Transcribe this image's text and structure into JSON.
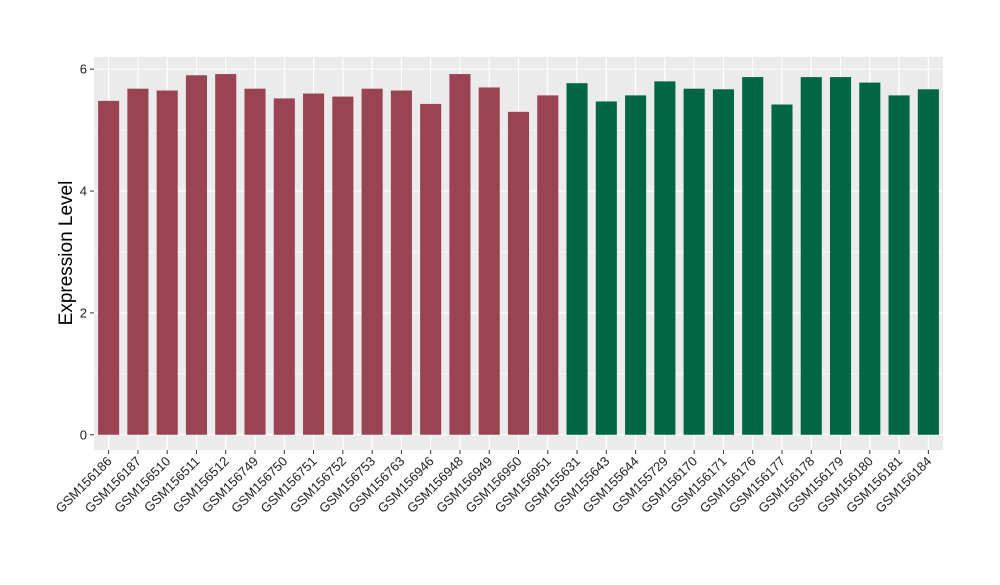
{
  "chart_data": {
    "type": "bar",
    "title": "",
    "xlabel": "",
    "ylabel": "Expression Level",
    "ylim": [
      -0.25,
      6.2
    ],
    "yticks": [
      0,
      2,
      4,
      6
    ],
    "grid": true,
    "legend": "none",
    "categories": [
      "GSM156186",
      "GSM156187",
      "GSM156510",
      "GSM156511",
      "GSM156512",
      "GSM156749",
      "GSM156750",
      "GSM156751",
      "GSM156752",
      "GSM156753",
      "GSM156763",
      "GSM156946",
      "GSM156948",
      "GSM156949",
      "GSM156950",
      "GSM156951",
      "GSM155631",
      "GSM155643",
      "GSM155644",
      "GSM155729",
      "GSM156170",
      "GSM156171",
      "GSM156176",
      "GSM156177",
      "GSM156178",
      "GSM156179",
      "GSM156180",
      "GSM156181",
      "GSM156184"
    ],
    "values": [
      5.48,
      5.68,
      5.65,
      5.9,
      5.92,
      5.68,
      5.52,
      5.6,
      5.55,
      5.68,
      5.65,
      5.43,
      5.92,
      5.7,
      5.3,
      5.57,
      5.77,
      5.47,
      5.57,
      5.8,
      5.68,
      5.67,
      5.87,
      5.42,
      5.87,
      5.87,
      5.78,
      5.57,
      5.67
    ],
    "groups": [
      {
        "count": 16,
        "color": "#9a4352"
      },
      {
        "count": 13,
        "color": "#006644"
      }
    ],
    "colors": {
      "panel": "#ebebeb",
      "grid": "#ffffff",
      "text": "#000000"
    }
  }
}
